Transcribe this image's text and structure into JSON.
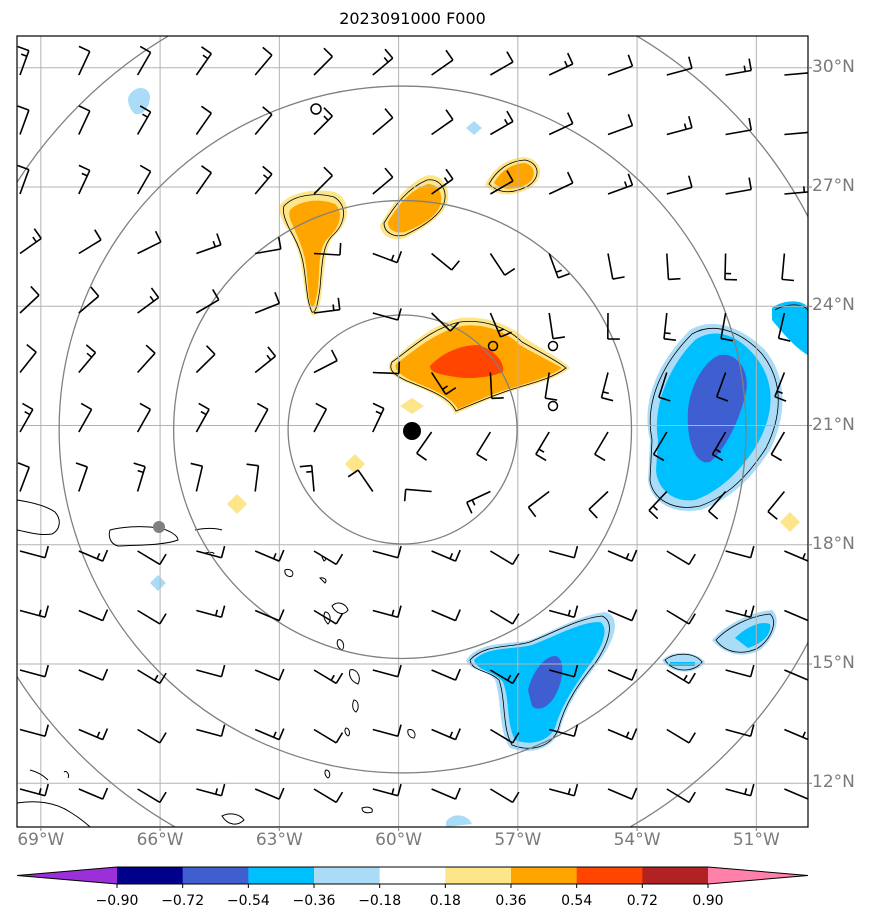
{
  "title": "2023091000 F000",
  "lat_labels": [
    {
      "text": "30°N",
      "lat": 30
    },
    {
      "text": "27°N",
      "lat": 27
    },
    {
      "text": "24°N",
      "lat": 24
    },
    {
      "text": "21°N",
      "lat": 21
    },
    {
      "text": "18°N",
      "lat": 18
    },
    {
      "text": "15°N",
      "lat": 15
    },
    {
      "text": "12°N",
      "lat": 12
    }
  ],
  "lon_labels": [
    {
      "text": "69°W",
      "lon": -69
    },
    {
      "text": "66°W",
      "lon": -66
    },
    {
      "text": "63°W",
      "lon": -63
    },
    {
      "text": "60°W",
      "lon": -60
    },
    {
      "text": "57°W",
      "lon": -57
    },
    {
      "text": "54°W",
      "lon": -54
    },
    {
      "text": "51°W",
      "lon": -51
    }
  ],
  "map_extent": {
    "lon_min": -69.6,
    "lon_max": -49.7,
    "lat_min": 10.9,
    "lat_max": 30.8
  },
  "storm_center": {
    "lon": -59.9,
    "lat": 20.9
  },
  "reference_point": {
    "lon": -65.9,
    "lat": 18.5
  },
  "range_rings_deg": [
    3,
    6,
    9,
    12
  ],
  "colorbar": {
    "ticks": [
      "−0.90",
      "−0.72",
      "−0.54",
      "−0.36",
      "−0.18",
      "0.18",
      "0.36",
      "0.54",
      "0.72",
      "0.90"
    ],
    "colors": [
      "#9b30d8",
      "#00008b",
      "#3f5fd0",
      "#00bfff",
      "#aadcf8",
      "#ffffff",
      "#fde58a",
      "#ffa500",
      "#ff4500",
      "#b22222",
      "#ff80a8"
    ]
  },
  "colors": {
    "grid": "#b3b3b3",
    "rings": "#808080",
    "coast": "#000000",
    "labels": "#7a7a7a"
  }
}
